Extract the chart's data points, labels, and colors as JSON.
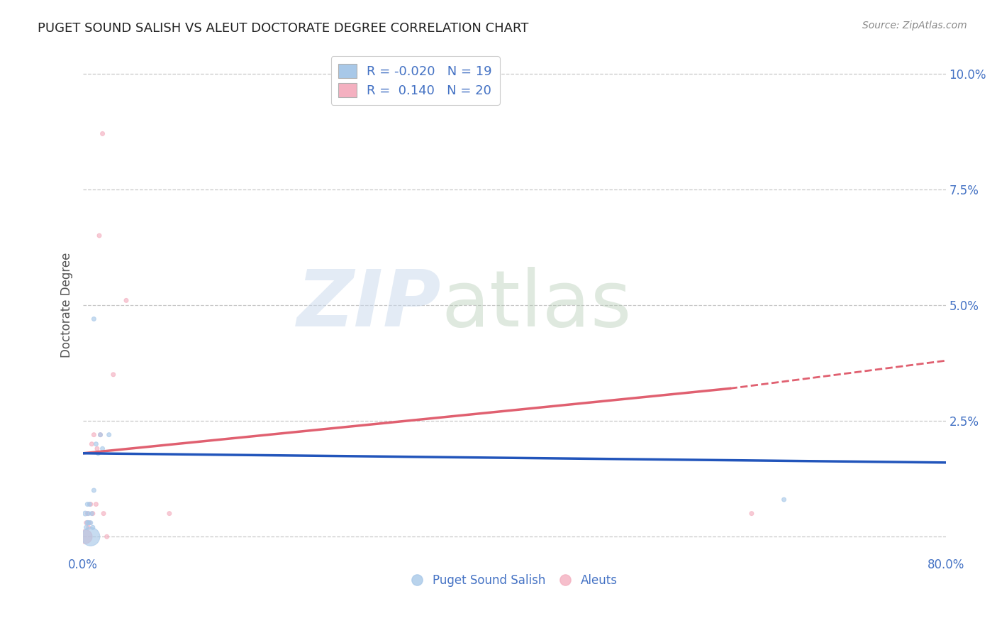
{
  "title": "PUGET SOUND SALISH VS ALEUT DOCTORATE DEGREE CORRELATION CHART",
  "source": "Source: ZipAtlas.com",
  "ylabel": "Doctorate Degree",
  "yticks": [
    0.0,
    0.025,
    0.05,
    0.075,
    0.1
  ],
  "ytick_labels": [
    "",
    "2.5%",
    "5.0%",
    "7.5%",
    "10.0%"
  ],
  "xticks": [
    0.0,
    0.1,
    0.2,
    0.3,
    0.4,
    0.5,
    0.6,
    0.7,
    0.8
  ],
  "xtick_labels": [
    "0.0%",
    "",
    "",
    "",
    "",
    "",
    "",
    "",
    "80.0%"
  ],
  "legend_blue_r": "R = -0.020",
  "legend_blue_n": "N = 19",
  "legend_pink_r": "R =  0.140",
  "legend_pink_n": "N = 20",
  "watermark_zip": "ZIP",
  "watermark_atlas": "atlas",
  "blue_color": "#a8c8e8",
  "pink_color": "#f4b0c0",
  "blue_line_color": "#2255bb",
  "pink_line_color": "#e06070",
  "blue_scatter": {
    "x": [
      0.002,
      0.003,
      0.004,
      0.004,
      0.005,
      0.005,
      0.006,
      0.007,
      0.007,
      0.008,
      0.009,
      0.01,
      0.01,
      0.012,
      0.014,
      0.016,
      0.018,
      0.024,
      0.65
    ],
    "y": [
      0.005,
      0.002,
      0.007,
      0.003,
      0.005,
      0.003,
      0.007,
      0.0,
      0.003,
      0.005,
      0.002,
      0.01,
      0.047,
      0.02,
      0.018,
      0.022,
      0.019,
      0.022,
      0.008
    ],
    "size": [
      25,
      20,
      18,
      22,
      18,
      18,
      18,
      350,
      18,
      18,
      18,
      18,
      18,
      18,
      18,
      18,
      18,
      18,
      18
    ]
  },
  "pink_scatter": {
    "x": [
      0.002,
      0.003,
      0.004,
      0.005,
      0.006,
      0.007,
      0.008,
      0.009,
      0.01,
      0.012,
      0.013,
      0.015,
      0.016,
      0.018,
      0.019,
      0.022,
      0.028,
      0.04,
      0.08,
      0.62
    ],
    "y": [
      0.0,
      0.003,
      0.005,
      0.002,
      0.003,
      0.007,
      0.02,
      0.005,
      0.022,
      0.007,
      0.019,
      0.065,
      0.022,
      0.087,
      0.005,
      0.0,
      0.035,
      0.051,
      0.005,
      0.005
    ],
    "size": [
      200,
      18,
      18,
      18,
      18,
      18,
      18,
      18,
      18,
      18,
      18,
      18,
      18,
      18,
      18,
      18,
      18,
      18,
      18,
      18
    ]
  },
  "blue_line": {
    "x": [
      0.0,
      0.8
    ],
    "y": [
      0.018,
      0.016
    ]
  },
  "pink_line_solid": {
    "x": [
      0.0,
      0.6
    ],
    "y": [
      0.018,
      0.032
    ]
  },
  "pink_line_dashed": {
    "x": [
      0.6,
      0.8
    ],
    "y": [
      0.032,
      0.038
    ]
  },
  "background_color": "#ffffff",
  "grid_color": "#c8c8c8",
  "axis_color": "#4472c4",
  "title_color": "#222222",
  "title_fontsize": 13,
  "axis_label_color": "#555555"
}
